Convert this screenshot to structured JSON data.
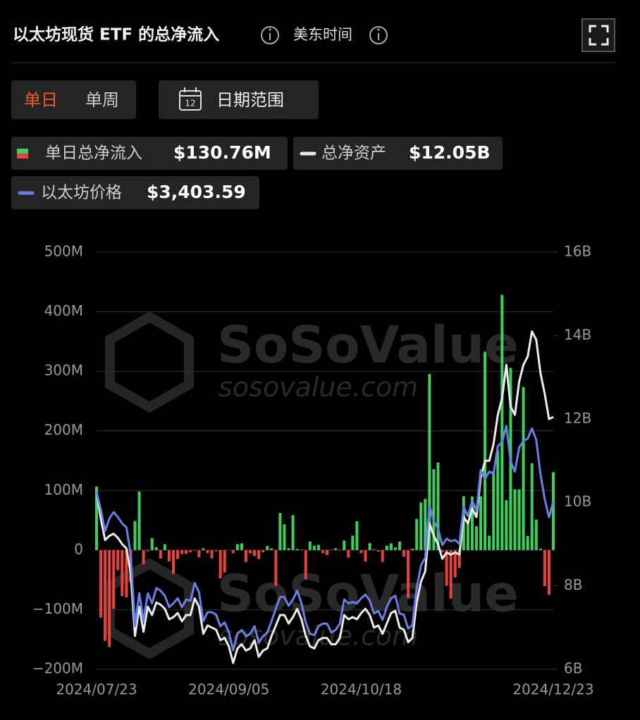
{
  "header": {
    "title": "以太坊现货 ETF 的总净流入",
    "timezone": "美东时间"
  },
  "controls": {
    "tabs": [
      "单日",
      "单周"
    ],
    "calendar_day": "12",
    "date_range": "日期范围"
  },
  "watermark": {
    "brand": "SoSoValue",
    "site": "sosovalue.com"
  },
  "chart_data": {
    "type": "bar-line",
    "categories": [
      "2024/07/23",
      null,
      null,
      null,
      null,
      null,
      null,
      null,
      null,
      null,
      null,
      null,
      null,
      null,
      null,
      null,
      null,
      null,
      null,
      null,
      null,
      null,
      null,
      null,
      null,
      null,
      null,
      null,
      null,
      null,
      null,
      "2024/09/05",
      null,
      null,
      null,
      null,
      null,
      null,
      null,
      null,
      null,
      null,
      null,
      null,
      null,
      null,
      null,
      null,
      null,
      null,
      null,
      null,
      null,
      null,
      null,
      null,
      null,
      null,
      null,
      null,
      null,
      null,
      "2024/10/18",
      null,
      null,
      null,
      null,
      null,
      null,
      null,
      null,
      null,
      null,
      null,
      null,
      null,
      null,
      null,
      null,
      null,
      null,
      null,
      null,
      null,
      null,
      null,
      null,
      null,
      null,
      null,
      null,
      null,
      null,
      null,
      null,
      null,
      null,
      null,
      null,
      null,
      null,
      null,
      null,
      null,
      null,
      null,
      null,
      "2024/12/23"
    ],
    "series": [
      {
        "name": "单日总净流入",
        "latest_label": "$130.76M",
        "color": "#3ecf5a",
        "negative_color": "#e8423a",
        "values": [
          106.6,
          -113.3,
          -152.3,
          -162.7,
          -98.3,
          -33.7,
          -77.2,
          -79.4,
          -54.4,
          48.8,
          98.4,
          -23.7,
          -2.0,
          20.0,
          4.9,
          -14.2,
          10.0,
          -19.0,
          -40.0,
          -15.0,
          -6.5,
          -6.5,
          -3.5,
          -1.0,
          -12.0,
          3.0,
          -5.0,
          -14.0,
          -1.8,
          -47.4,
          -37.5,
          -0.2,
          -5.2,
          10.0,
          11.4,
          -20.1,
          -5.2,
          -9.9,
          -15.1,
          -3.8,
          7.1,
          2.9,
          -60.0,
          62.5,
          43.2,
          2.9,
          58.7,
          2.0,
          0.8,
          -48.6,
          14.5,
          7.4,
          8.8,
          -5.0,
          -8.2,
          0.5,
          3.0,
          0.6,
          16.2,
          -12.6,
          24.2,
          48.4,
          -5.0,
          -19.2,
          11.9,
          1.1,
          -2.4,
          -19.8,
          7.4,
          11.2,
          4.4,
          14.1,
          -10.9,
          -80.0,
          2.3,
          52.3,
          79.7,
          85.9,
          295.5,
          135.9,
          146.9,
          -3.2,
          -59.8,
          -81.3,
          -45.9,
          -30.0,
          90.6,
          45.9,
          90.0,
          40.0,
          90.3,
          332.9,
          24.2,
          132.6,
          167.6,
          428.5,
          83.8,
          305.7,
          102.1,
          102.0,
          273.7,
          23.7,
          145.7,
          51.2,
          2.5,
          -60.5,
          -75.1,
          130.8
        ]
      },
      {
        "name": "总净资产",
        "latest_label": "$12.05B",
        "color": "#ececec",
        "axis": "y2",
        "values": [
          10.25,
          9.6,
          9.1,
          9.2,
          9.25,
          9.15,
          9.0,
          8.9,
          8.3,
          6.8,
          7.5,
          6.9,
          7.5,
          7.3,
          7.6,
          7.55,
          7.45,
          7.2,
          7.25,
          7.35,
          7.15,
          7.3,
          7.3,
          7.7,
          7.5,
          6.85,
          7.05,
          7.0,
          6.95,
          6.7,
          6.75,
          6.55,
          6.15,
          6.5,
          6.6,
          6.45,
          6.5,
          6.7,
          6.3,
          6.45,
          6.5,
          6.8,
          7.05,
          7.3,
          7.3,
          7.1,
          7.25,
          7.45,
          7.2,
          6.8,
          6.55,
          6.5,
          6.7,
          6.75,
          6.75,
          6.6,
          6.6,
          6.75,
          7.3,
          7.2,
          7.25,
          7.2,
          7.35,
          7.45,
          7.3,
          7.0,
          7.05,
          6.85,
          7.1,
          7.35,
          7.4,
          7.0,
          6.95,
          6.65,
          6.75,
          7.6,
          8.1,
          8.35,
          9.5,
          9.2,
          9.0,
          8.65,
          8.8,
          8.75,
          8.8,
          8.75,
          9.65,
          9.5,
          9.85,
          9.65,
          10.6,
          11.0,
          11.0,
          11.4,
          12.1,
          12.5,
          13.3,
          12.3,
          12.1,
          12.9,
          13.3,
          13.5,
          14.1,
          13.9,
          13.1,
          12.6,
          12.0,
          12.05
        ]
      },
      {
        "name": "以太坊价格",
        "latest_label": "$3,403.59",
        "color": "#6a7fe6",
        "axis": "y3",
        "values": [
          3480,
          3340,
          3170,
          3270,
          3320,
          3280,
          3230,
          3200,
          2990,
          2420,
          2680,
          2460,
          2680,
          2600,
          2720,
          2700,
          2660,
          2570,
          2600,
          2640,
          2570,
          2630,
          2620,
          2760,
          2690,
          2460,
          2530,
          2530,
          2510,
          2420,
          2450,
          2370,
          2230,
          2360,
          2390,
          2340,
          2360,
          2420,
          2290,
          2340,
          2370,
          2460,
          2560,
          2650,
          2650,
          2580,
          2630,
          2700,
          2600,
          2450,
          2360,
          2350,
          2420,
          2440,
          2440,
          2370,
          2390,
          2440,
          2630,
          2600,
          2610,
          2600,
          2640,
          2670,
          2620,
          2520,
          2540,
          2470,
          2570,
          2640,
          2660,
          2520,
          2510,
          2400,
          2430,
          2720,
          2900,
          2960,
          3370,
          3250,
          3190,
          3060,
          3110,
          3090,
          3100,
          3070,
          3360,
          3290,
          3410,
          3330,
          3650,
          3580,
          3640,
          3620,
          3840,
          3870,
          4000,
          3720,
          3640,
          3830,
          3880,
          3900,
          3980,
          3890,
          3620,
          3420,
          3280,
          3403.59
        ]
      }
    ],
    "ylim": [
      -200,
      500
    ],
    "yticks": [
      {
        "value": -200,
        "label": "−200M"
      },
      {
        "value": -100,
        "label": "−100M"
      },
      0,
      {
        "value": 100,
        "label": "100M"
      },
      {
        "value": 200,
        "label": "200M"
      },
      {
        "value": 300,
        "label": "300M"
      },
      {
        "value": 400,
        "label": "400M"
      },
      {
        "value": 500,
        "label": "500M"
      }
    ],
    "y2lim": [
      6,
      16
    ],
    "y2ticks": [
      {
        "value": 6,
        "label": "6B"
      },
      {
        "value": 8,
        "label": "8B"
      },
      {
        "value": 10,
        "label": "10B"
      },
      {
        "value": 12,
        "label": "12B"
      },
      {
        "value": 14,
        "label": "14B"
      },
      {
        "value": 16,
        "label": "16B"
      }
    ],
    "y3lim": [
      2080,
      5370
    ],
    "grid": true
  }
}
